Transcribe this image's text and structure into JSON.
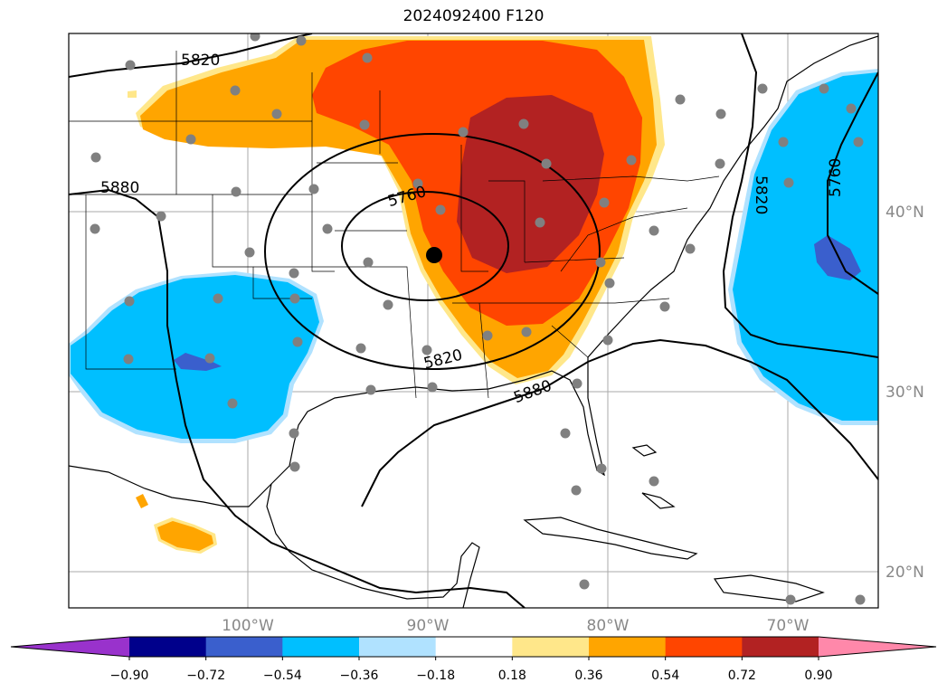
{
  "title": "2024092400 F120",
  "map": {
    "lon_labels": [
      "100°W",
      "90°W",
      "80°W",
      "70°W"
    ],
    "lat_labels": [
      "40°N",
      "30°N",
      "20°N"
    ],
    "contour_labels": [
      "5820",
      "5880",
      "5760",
      "5820",
      "5880",
      "5820",
      "5760"
    ]
  },
  "colorbar": {
    "colors": [
      "#9932cc",
      "#00008b",
      "#3a5fcd",
      "#00bfff",
      "#b0e2ff",
      "#ffffff",
      "#ffe78a",
      "#ffa500",
      "#ff4500",
      "#b22222",
      "#ff88aa"
    ],
    "tick_labels": [
      "−0.90",
      "−0.72",
      "−0.54",
      "−0.36",
      "−0.18",
      "0.18",
      "0.36",
      "0.54",
      "0.72",
      "0.90"
    ]
  }
}
